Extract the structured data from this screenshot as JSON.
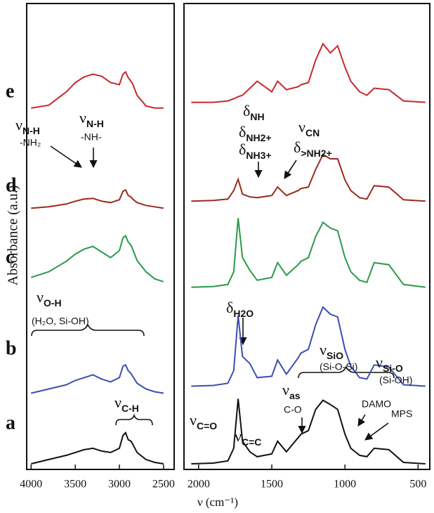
{
  "chart_data": [
    {
      "type": "line",
      "ylabel": "Absorbance (a.u.)",
      "xlim": [
        4050,
        2380
      ],
      "xticks": [
        4000,
        3500,
        3000,
        2500
      ],
      "ylim": [
        0,
        660
      ],
      "x": [
        4000,
        3800,
        3600,
        3500,
        3400,
        3300,
        3200,
        3100,
        3000,
        2960,
        2930,
        2900,
        2870,
        2850,
        2800,
        2700,
        2600,
        2500
      ],
      "series": [
        {
          "name": "a",
          "color": "#111111",
          "values": [
            8,
            14,
            20,
            24,
            28,
            30,
            26,
            24,
            30,
            48,
            52,
            42,
            40,
            36,
            24,
            14,
            10,
            8
          ]
        },
        {
          "name": "b",
          "color": "#3b4fb0",
          "values": [
            108,
            114,
            120,
            126,
            130,
            134,
            128,
            124,
            130,
            146,
            148,
            140,
            136,
            132,
            122,
            114,
            110,
            108
          ]
        },
        {
          "name": "c",
          "color": "#2a9a4a",
          "values": [
            272,
            280,
            295,
            305,
            312,
            316,
            308,
            300,
            310,
            328,
            331,
            322,
            318,
            312,
            296,
            280,
            270,
            266
          ]
        },
        {
          "name": "d",
          "color": "#9b2a1f",
          "values": [
            370,
            372,
            376,
            380,
            383,
            384,
            380,
            378,
            382,
            394,
            396,
            388,
            386,
            383,
            378,
            374,
            372,
            370
          ]
        },
        {
          "name": "e",
          "color": "#c8282d",
          "values": [
            512,
            516,
            535,
            548,
            556,
            560,
            557,
            548,
            545,
            560,
            563,
            555,
            550,
            546,
            530,
            515,
            512,
            512
          ]
        }
      ]
    },
    {
      "type": "line",
      "xlabel": "ν (cm⁻¹)",
      "xlim": [
        2100,
        420
      ],
      "xticks": [
        2000,
        1500,
        1000,
        500
      ],
      "ylim": [
        0,
        660
      ],
      "x": [
        2050,
        1900,
        1800,
        1760,
        1730,
        1700,
        1650,
        1600,
        1500,
        1460,
        1400,
        1320,
        1300,
        1250,
        1200,
        1150,
        1100,
        1050,
        1000,
        960,
        900,
        850,
        800,
        700,
        600,
        450
      ],
      "series": [
        {
          "color": "#111111",
          "values": [
            8,
            9,
            12,
            30,
            100,
            40,
            25,
            18,
            22,
            40,
            25,
            45,
            50,
            55,
            85,
            98,
            92,
            85,
            50,
            30,
            20,
            18,
            30,
            28,
            10,
            8
          ]
        },
        {
          "color": "#3b4fb0",
          "values": [
            118,
            119,
            122,
            140,
            218,
            160,
            150,
            130,
            132,
            155,
            135,
            158,
            165,
            170,
            205,
            230,
            220,
            216,
            170,
            146,
            130,
            128,
            148,
            145,
            120,
            118
          ]
        },
        {
          "color": "#2a9a4a",
          "values": [
            258,
            259,
            262,
            280,
            356,
            300,
            282,
            268,
            272,
            293,
            275,
            290,
            295,
            300,
            330,
            350,
            342,
            338,
            300,
            280,
            268,
            265,
            293,
            290,
            262,
            258
          ]
        },
        {
          "color": "#9b2a1f",
          "values": [
            380,
            381,
            383,
            395,
            411,
            390,
            386,
            385,
            388,
            400,
            388,
            395,
            398,
            400,
            425,
            446,
            440,
            440,
            410,
            395,
            385,
            383,
            402,
            400,
            382,
            380
          ]
        },
        {
          "color": "#c8282d",
          "values": [
            520,
            520,
            522,
            525,
            528,
            530,
            540,
            550,
            535,
            550,
            538,
            542,
            545,
            548,
            580,
            603,
            590,
            600,
            570,
            550,
            535,
            530,
            540,
            538,
            522,
            520
          ]
        }
      ]
    }
  ],
  "annotations": [
    {
      "symbol": "ν",
      "sub": "N-H"
    },
    {
      "text": "-NH₂"
    },
    {
      "symbol": "ν",
      "sub": "N-H"
    },
    {
      "text": "-NH-"
    },
    {
      "symbol": "δ",
      "sub": "NH"
    },
    {
      "symbol": "δ",
      "sub": "NH2+"
    },
    {
      "symbol": "δ",
      "sub": "NH3+"
    },
    {
      "symbol": "ν",
      "sub": "CN"
    },
    {
      "symbol": "δ",
      "sub": ">NH2+"
    },
    {
      "symbol": "ν",
      "sub": "O-H"
    },
    {
      "text": "(H₂O, Si-OH)"
    },
    {
      "symbol": "δ",
      "sub": "H2O"
    },
    {
      "symbol": "ν",
      "sub": "C-H"
    },
    {
      "symbol": "ν",
      "sub": "SiO"
    },
    {
      "text": "(Si-O-Si)"
    },
    {
      "symbol": "ν",
      "sub": "Si-O"
    },
    {
      "text": "(Si-OH)"
    },
    {
      "symbol": "ν",
      "sub": "as"
    },
    {
      "text": "C-O"
    },
    {
      "symbol": "ν",
      "sub": "C=O"
    },
    {
      "symbol": "ν",
      "sub": "C=C"
    },
    {
      "text": "DAMO"
    },
    {
      "text": "MPS"
    }
  ]
}
